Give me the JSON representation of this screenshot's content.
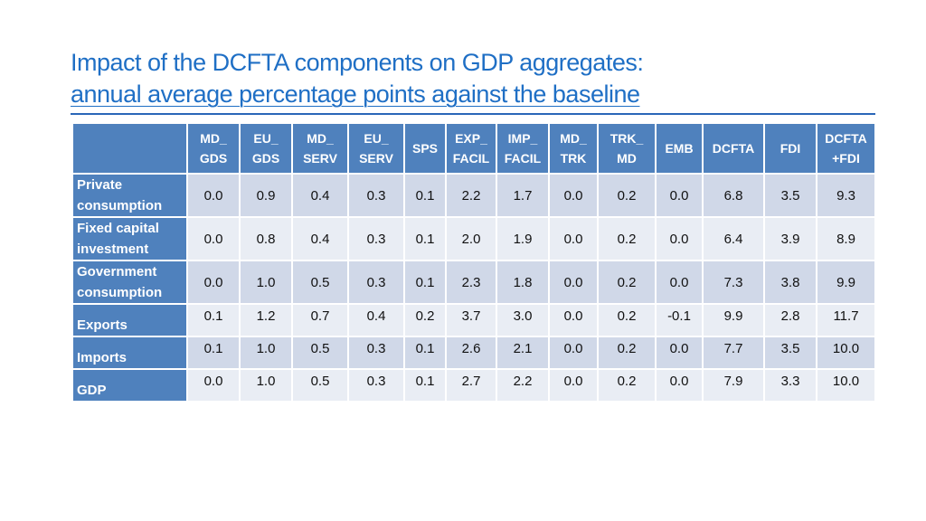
{
  "title": {
    "line1": "Impact of the DCFTA components on GDP aggregates:",
    "line2": "annual average percentage points against the baseline"
  },
  "table": {
    "corner": "",
    "columns": [
      [
        "MD_",
        "GDS"
      ],
      [
        "EU_",
        "GDS"
      ],
      [
        "MD_",
        "SERV"
      ],
      [
        "EU_",
        "SERV"
      ],
      [
        "SPS"
      ],
      [
        "EXP_",
        "FACIL"
      ],
      [
        "IMP_",
        "FACIL"
      ],
      [
        "MD_",
        "TRK"
      ],
      [
        "TRK_",
        "MD"
      ],
      [
        "EMB"
      ],
      [
        "DCFTA"
      ],
      [
        "FDI"
      ],
      [
        "DCFTA",
        "+FDI"
      ]
    ],
    "rows": [
      {
        "label": [
          "Private",
          "consumption"
        ],
        "values": [
          "0.0",
          "0.9",
          "0.4",
          "0.3",
          "0.1",
          "2.2",
          "1.7",
          "0.0",
          "0.2",
          "0.0",
          "6.8",
          "3.5",
          "9.3"
        ]
      },
      {
        "label": [
          "Fixed capital",
          "investment"
        ],
        "values": [
          "0.0",
          "0.8",
          "0.4",
          "0.3",
          "0.1",
          "2.0",
          "1.9",
          "0.0",
          "0.2",
          "0.0",
          "6.4",
          "3.9",
          "8.9"
        ]
      },
      {
        "label": [
          "Government",
          "consumption"
        ],
        "values": [
          "0.0",
          "1.0",
          "0.5",
          "0.3",
          "0.1",
          "2.3",
          "1.8",
          "0.0",
          "0.2",
          "0.0",
          "7.3",
          "3.8",
          "9.9"
        ]
      },
      {
        "label": [
          "Exports"
        ],
        "values": [
          "0.1",
          "1.2",
          "0.7",
          "0.4",
          "0.2",
          "3.7",
          "3.0",
          "0.0",
          "0.2",
          "-0.1",
          "9.9",
          "2.8",
          "11.7"
        ]
      },
      {
        "label": [
          "Imports"
        ],
        "values": [
          "0.1",
          "1.0",
          "0.5",
          "0.3",
          "0.1",
          "2.6",
          "2.1",
          "0.0",
          "0.2",
          "0.0",
          "7.7",
          "3.5",
          "10.0"
        ]
      },
      {
        "label": [
          "GDP"
        ],
        "values": [
          "0.0",
          "1.0",
          "0.5",
          "0.3",
          "0.1",
          "2.7",
          "2.2",
          "0.0",
          "0.2",
          "0.0",
          "7.9",
          "3.3",
          "10.0"
        ]
      }
    ]
  }
}
